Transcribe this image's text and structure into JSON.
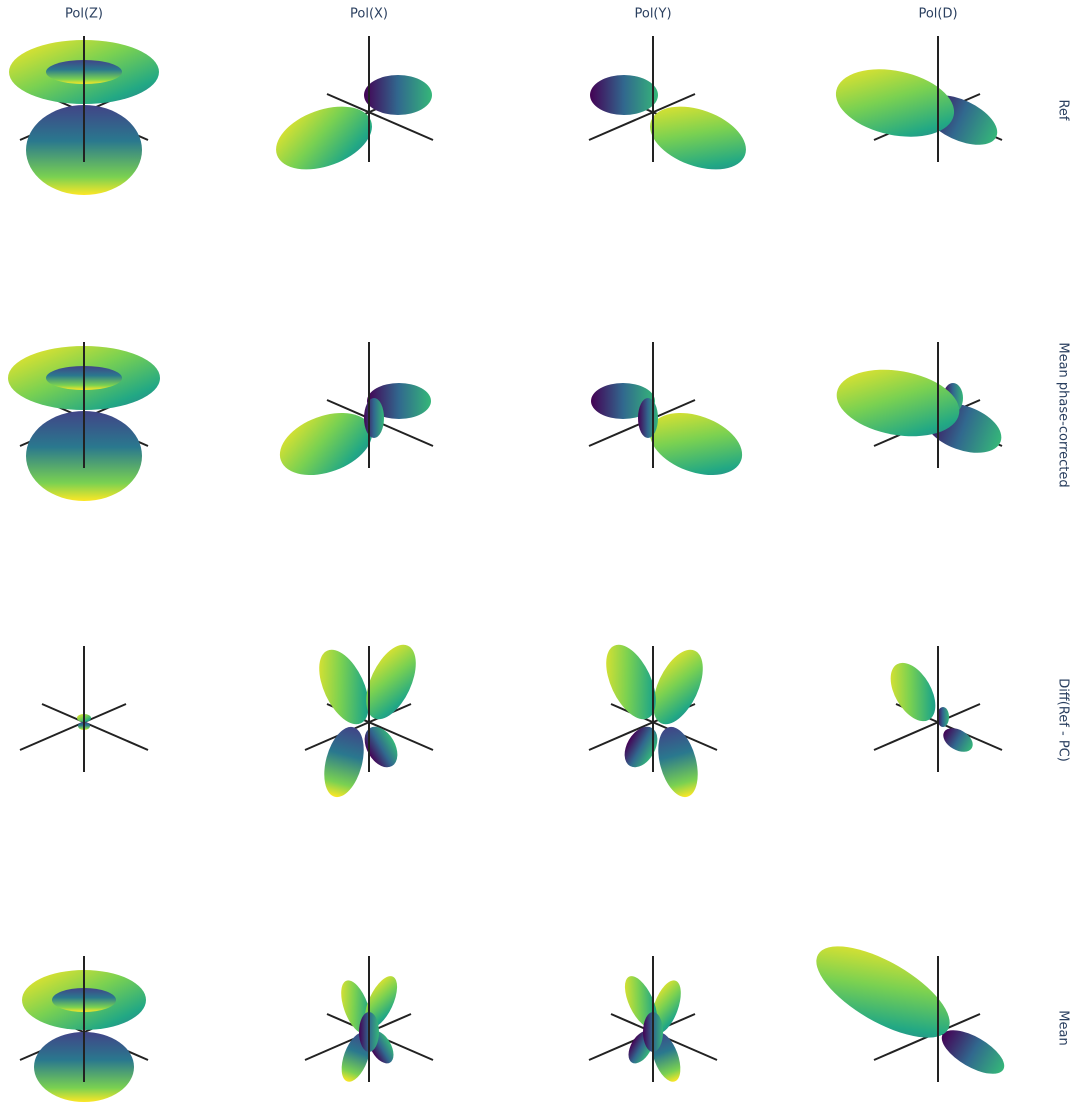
{
  "columns": [
    "Pol(Z)",
    "Pol(X)",
    "Pol(Y)",
    "Pol(D)"
  ],
  "rows": [
    "Ref",
    "Mean phase-corrected",
    "Diff(Ref - PC)",
    "Mean"
  ]
}
